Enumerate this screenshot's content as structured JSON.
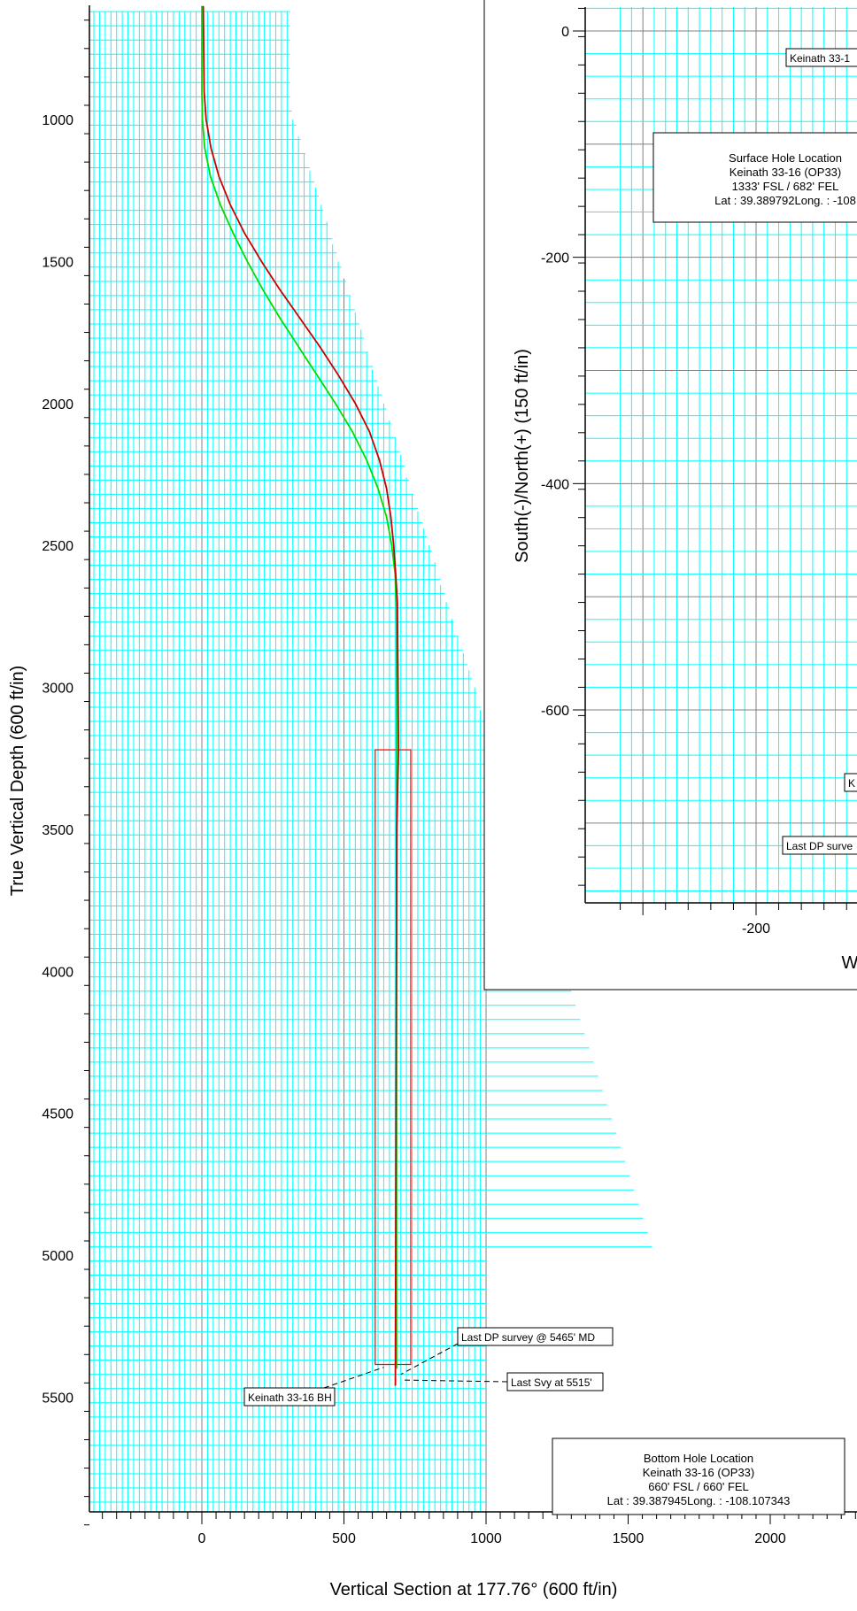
{
  "chart_data": [
    {
      "type": "line",
      "name": "vertical-section",
      "xlabel": "Vertical Section at 177.76° (600 ft/in)",
      "ylabel": "True Vertical Depth (600 ft/in)",
      "xlim": [
        -400,
        2400
      ],
      "ylim": [
        6000,
        600
      ],
      "x_ticks": [
        0,
        500,
        1000,
        1500,
        2000
      ],
      "x_tick_labels": [
        "0",
        "500",
        "1000",
        "1500",
        "2000"
      ],
      "y_ticks": [
        1000,
        1500,
        2000,
        2500,
        3000,
        3500,
        4000,
        4500,
        5000,
        5500
      ],
      "y_tick_labels": [
        "1000",
        "1500",
        "2000",
        "2500",
        "3000",
        "3500",
        "4000",
        "4500",
        "5000",
        "5500"
      ],
      "grid": true,
      "colors": {
        "grid": "#00ffff",
        "major_grid": "#808080",
        "plan": "#00dd00",
        "actual": "#cc0000",
        "target": "#ff0000"
      },
      "series": [
        {
          "x": [
            0,
            0,
            2,
            10,
            30,
            65,
            110,
            160,
            215,
            275,
            340,
            405,
            470,
            530,
            580,
            620,
            650,
            668,
            680,
            684,
            685,
            685,
            685,
            685,
            685
          ],
          "y": [
            600,
            900,
            1000,
            1100,
            1200,
            1300,
            1400,
            1500,
            1600,
            1700,
            1800,
            1900,
            2000,
            2100,
            2200,
            2300,
            2400,
            2500,
            2600,
            2700,
            2800,
            3000,
            3220,
            3500,
            5400
          ]
        },
        {
          "x": [
            5,
            8,
            15,
            32,
            60,
            100,
            150,
            210,
            275,
            345,
            415,
            480,
            540,
            590,
            625,
            650,
            665,
            675,
            682,
            688,
            692,
            686,
            681
          ],
          "y": [
            600,
            900,
            1000,
            1100,
            1200,
            1300,
            1400,
            1500,
            1600,
            1700,
            1800,
            1900,
            2000,
            2100,
            2200,
            2300,
            2400,
            2500,
            2600,
            2700,
            3220,
            3500,
            5460
          ]
        }
      ],
      "target_box": {
        "x": [
          610,
          735
        ],
        "y": [
          3220,
          5385
        ]
      },
      "annotations": [
        {
          "text": "Last DP survey @ 5465' MD",
          "x": 700,
          "y": 5420
        },
        {
          "text": "Last Svy at 5515'",
          "x": 710,
          "y": 5440
        },
        {
          "text": "Keinath 33-16 BH",
          "x": 685,
          "y": 5420
        }
      ],
      "info_box": {
        "lines": [
          "Bottom Hole Location",
          "Keinath 33-16 (OP33)",
          "660' FSL / 660' FEL",
          "Lat :  39.387945Long. : -108.107343"
        ]
      }
    },
    {
      "type": "line",
      "name": "plan-view",
      "xlabel": "W",
      "ylabel": "South(-)/North(+) (150 ft/in)",
      "xlim": [
        -350,
        50
      ],
      "ylim": [
        -760,
        30
      ],
      "x_ticks": [
        -200
      ],
      "x_tick_labels": [
        "-200"
      ],
      "y_ticks": [
        0,
        -200,
        -400,
        -600
      ],
      "y_tick_labels": [
        "0",
        "-200",
        "-400",
        "-600"
      ],
      "grid": true,
      "annotations": [
        {
          "text": "Keinath 33-1",
          "x": -170,
          "y": -20
        },
        {
          "text": "K",
          "x": -80,
          "y": -660
        },
        {
          "text": "Last DP surve",
          "x": -170,
          "y": -720
        }
      ],
      "info_box": {
        "lines": [
          "Surface Hole Location",
          "Keinath 33-16 (OP33)",
          "1333' FSL / 682' FEL",
          "Lat :  39.389792Long. :  -108"
        ]
      }
    }
  ]
}
